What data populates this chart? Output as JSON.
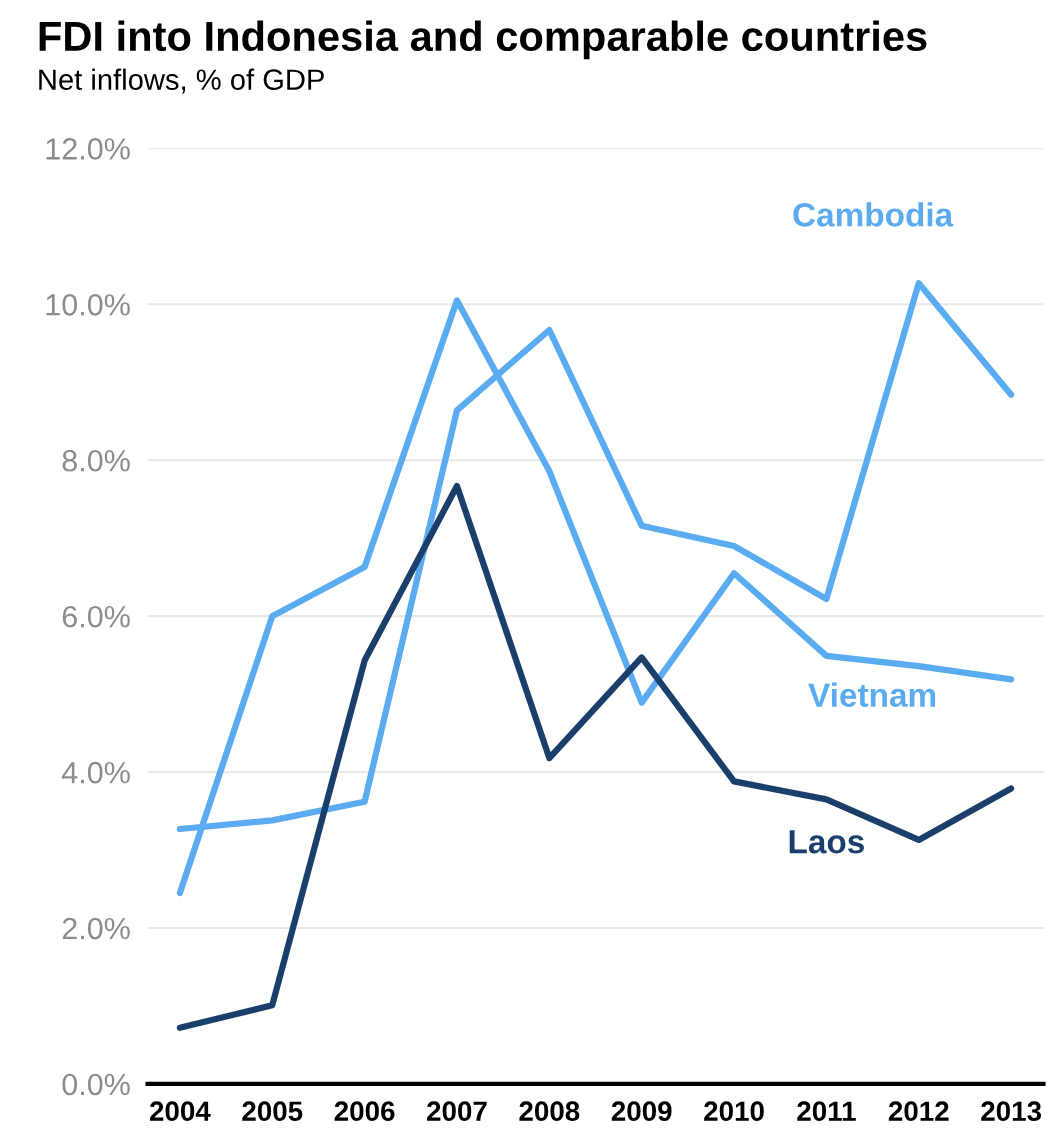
{
  "chart_data": {
    "type": "line",
    "title": "FDI into Indonesia and comparable countries",
    "subtitle": "Net inflows, % of GDP",
    "categories": [
      "2004",
      "2005",
      "2006",
      "2007",
      "2008",
      "2009",
      "2010",
      "2011",
      "2012",
      "2013"
    ],
    "series": [
      {
        "name": "Cambodia",
        "color": "#5aabf0",
        "values": [
          3.27,
          3.38,
          3.62,
          8.64,
          9.67,
          7.16,
          6.9,
          6.22,
          10.27,
          8.84
        ]
      },
      {
        "name": "Vietnam",
        "color": "#5aabf0",
        "values": [
          2.45,
          6.0,
          6.63,
          10.05,
          7.86,
          4.89,
          6.55,
          5.49,
          5.36,
          5.19
        ]
      },
      {
        "name": "Laos",
        "color": "#1a3f6b",
        "values": [
          0.72,
          1.01,
          5.43,
          7.67,
          4.18,
          5.47,
          3.88,
          3.65,
          3.13,
          3.79
        ]
      }
    ],
    "ylim": [
      0,
      12
    ],
    "yticks": [
      {
        "value": 0,
        "label": "0.0%"
      },
      {
        "value": 2,
        "label": "2.0%"
      },
      {
        "value": 4,
        "label": "4.0%"
      },
      {
        "value": 6,
        "label": "6.0%"
      },
      {
        "value": 8,
        "label": "8.0%"
      },
      {
        "value": 10,
        "label": "10.0%"
      },
      {
        "value": 12,
        "label": "12.0%"
      }
    ],
    "grid": "y",
    "legend": false,
    "marker": "none",
    "line_style": "solid"
  }
}
